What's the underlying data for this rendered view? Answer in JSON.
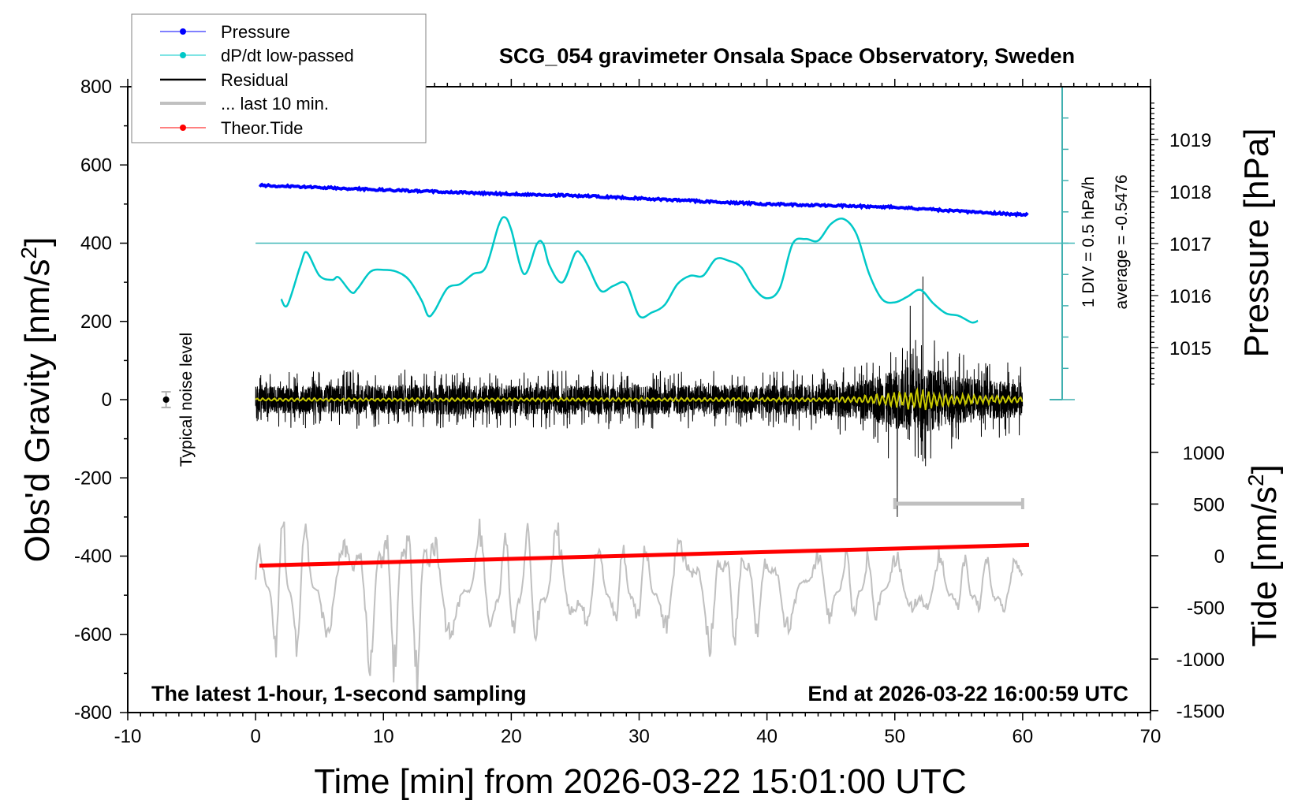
{
  "chart_data": {
    "type": "line",
    "title": "SCG_054 gravimeter Onsala Space Observatory, Sweden",
    "xlabel": "Time [min] from 2026-03-22 15:01:00 UTC",
    "ylabel": "Obs'd Gravity [nm/s",
    "ylabel_sup": "2",
    "ylabel_end": "]",
    "y2label": "Pressure [hPa]",
    "y3label": "Tide [nm/s",
    "y3label_sup": "2",
    "y3label_end": "]",
    "xlim": [
      -10,
      70
    ],
    "ylim": [
      -800,
      800
    ],
    "y2lim": [
      1014.3,
      1019.7
    ],
    "y3lim": [
      -1500,
      1000
    ],
    "xticks": [
      "-10",
      "0",
      "10",
      "20",
      "30",
      "40",
      "50",
      "60",
      "70"
    ],
    "yticks": [
      "800",
      "600",
      "400",
      "200",
      "0",
      "-200",
      "-400",
      "-600",
      "-800"
    ],
    "y2ticks": [
      "1019",
      "1018",
      "1017",
      "1016",
      "1015"
    ],
    "y3ticks": [
      "1000",
      "500",
      "0",
      "-500",
      "-1000",
      "-1500"
    ],
    "legend_position": "top-left",
    "legend": [
      {
        "name": "Pressure",
        "color": "#0000ff",
        "marker": "dot"
      },
      {
        "name": "dP/dt low-passed",
        "color": "#00c8c8",
        "marker": "dot"
      },
      {
        "name": "Residual",
        "color": "#000000",
        "marker": "line"
      },
      {
        "name": "... last 10 min.",
        "color": "#c0c0c0",
        "marker": "line"
      },
      {
        "name": "Theor.Tide",
        "color": "#ff0000",
        "marker": "dot"
      }
    ],
    "annotations": {
      "bottom_left": "The latest 1-hour, 1-second sampling",
      "bottom_right": "End at 2026-03-22 16:00:59 UTC",
      "dpdt_scale": "1 DIV = 0.5 hPa/h",
      "dpdt_average": "average = -0.5476",
      "noise_label": "Typical noise level"
    },
    "dpdt_average_hPa_per_h": -0.5476,
    "dpdt_div_hPa_per_h": 0.5,
    "noise_level": {
      "x": -7,
      "y": 0,
      "err": 20
    },
    "last10_marker": {
      "x_from": 50,
      "x_to": 60,
      "y": -266
    },
    "series": [
      {
        "name": "Pressure",
        "unit": "hPa",
        "color": "#0000ff",
        "points": [
          [
            0.3,
            1018.12
          ],
          [
            5,
            1018.08
          ],
          [
            10,
            1018.03
          ],
          [
            15,
            1017.99
          ],
          [
            20,
            1017.95
          ],
          [
            25,
            1017.92
          ],
          [
            30,
            1017.87
          ],
          [
            35,
            1017.81
          ],
          [
            40,
            1017.76
          ],
          [
            45,
            1017.73
          ],
          [
            50,
            1017.7
          ],
          [
            55,
            1017.62
          ],
          [
            60.5,
            1017.55
          ]
        ]
      },
      {
        "name": "dP/dt low-passed",
        "unit": "hPa/h",
        "color": "#00c8c8",
        "points": [
          [
            2,
            -1.441
          ],
          [
            2.5,
            -1.534
          ],
          [
            3.5,
            -0.908
          ],
          [
            4,
            -0.694
          ],
          [
            5,
            -1.068
          ],
          [
            6,
            -1.134
          ],
          [
            6.5,
            -1.094
          ],
          [
            7.5,
            -1.334
          ],
          [
            8,
            -1.268
          ],
          [
            9,
            -1.001
          ],
          [
            10,
            -0.974
          ],
          [
            11,
            -1.001
          ],
          [
            12,
            -1.134
          ],
          [
            13,
            -1.468
          ],
          [
            13.5,
            -1.708
          ],
          [
            14,
            -1.628
          ],
          [
            15,
            -1.268
          ],
          [
            16,
            -1.201
          ],
          [
            17,
            -1.041
          ],
          [
            18,
            -0.934
          ],
          [
            19,
            -0.268
          ],
          [
            19.5,
            -0.134
          ],
          [
            20,
            -0.334
          ],
          [
            21,
            -1.041
          ],
          [
            22,
            -0.561
          ],
          [
            22.5,
            -0.561
          ],
          [
            23,
            -0.908
          ],
          [
            24,
            -1.174
          ],
          [
            25,
            -0.708
          ],
          [
            25.5,
            -0.734
          ],
          [
            26,
            -0.908
          ],
          [
            27,
            -1.308
          ],
          [
            28,
            -1.228
          ],
          [
            29,
            -1.201
          ],
          [
            30,
            -1.708
          ],
          [
            31,
            -1.654
          ],
          [
            32,
            -1.534
          ],
          [
            33,
            -1.201
          ],
          [
            34,
            -1.068
          ],
          [
            35,
            -1.068
          ],
          [
            36,
            -0.801
          ],
          [
            37,
            -0.828
          ],
          [
            38,
            -0.934
          ],
          [
            39,
            -1.268
          ],
          [
            40,
            -1.428
          ],
          [
            41,
            -1.268
          ],
          [
            42,
            -0.561
          ],
          [
            43,
            -0.481
          ],
          [
            44,
            -0.508
          ],
          [
            45,
            -0.241
          ],
          [
            46,
            -0.161
          ],
          [
            47,
            -0.401
          ],
          [
            48,
            -1.041
          ],
          [
            49,
            -1.441
          ],
          [
            50,
            -1.494
          ],
          [
            51,
            -1.401
          ],
          [
            52,
            -1.294
          ],
          [
            53,
            -1.508
          ],
          [
            54,
            -1.668
          ],
          [
            55,
            -1.708
          ],
          [
            56,
            -1.814
          ],
          [
            56.5,
            -1.788
          ]
        ]
      },
      {
        "name": "Residual",
        "unit": "nm/s2",
        "color": "#000000",
        "x_range": [
          0,
          60
        ],
        "amplitude_envelope": [
          [
            0,
            70
          ],
          [
            10,
            78
          ],
          [
            20,
            75
          ],
          [
            30,
            78
          ],
          [
            40,
            72
          ],
          [
            45,
            85
          ],
          [
            48,
            105
          ],
          [
            50,
            150
          ],
          [
            52,
            170
          ],
          [
            54,
            140
          ],
          [
            56,
            110
          ],
          [
            60,
            90
          ]
        ],
        "spikes": [
          [
            49.5,
            -150
          ],
          [
            50.2,
            -300
          ],
          [
            51.2,
            240
          ],
          [
            52.2,
            315
          ],
          [
            52.4,
            -170
          ]
        ]
      },
      {
        "name": "Residual filtered",
        "unit": "nm/s2",
        "color": "#c8c800",
        "amplitude_envelope": [
          [
            0,
            4
          ],
          [
            45,
            5
          ],
          [
            47,
            10
          ],
          [
            50,
            20
          ],
          [
            52,
            30
          ],
          [
            54,
            15
          ],
          [
            60,
            8
          ]
        ]
      },
      {
        "name": "... last 10 min.",
        "unit": "nm/s2",
        "color": "#c0c0c0",
        "x_range": [
          0,
          60
        ],
        "center": -480,
        "amplitude_envelope": [
          [
            0,
            90
          ],
          [
            2,
            220
          ],
          [
            5,
            130
          ],
          [
            13,
            250
          ],
          [
            15,
            130
          ],
          [
            19,
            170
          ],
          [
            30,
            110
          ],
          [
            35,
            160
          ],
          [
            40,
            110
          ],
          [
            50,
            90
          ],
          [
            60,
            80
          ]
        ]
      },
      {
        "name": "Theor.Tide",
        "unit": "nm/s2",
        "color": "#ff0000",
        "points": [
          [
            0.3,
            -96
          ],
          [
            60.5,
            104
          ]
        ]
      }
    ]
  }
}
